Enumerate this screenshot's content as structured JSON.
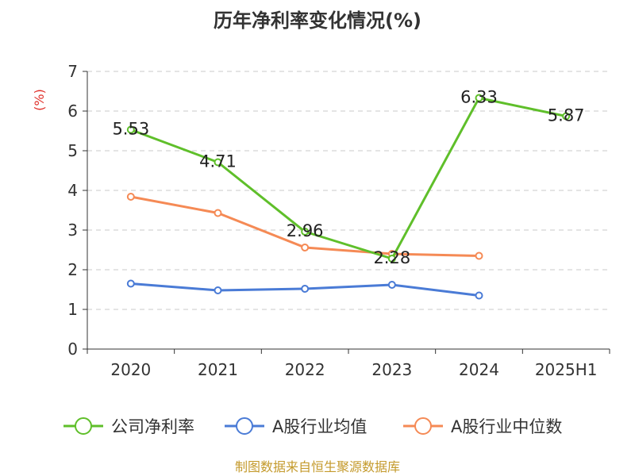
{
  "chart_data": {
    "type": "line",
    "title": "历年净利率变化情况(%)",
    "ylabel": "(%)",
    "xlabel": "",
    "categories": [
      "2020",
      "2021",
      "2022",
      "2023",
      "2024",
      "2025H1"
    ],
    "ylim": [
      0,
      7
    ],
    "yticks": [
      0,
      1,
      2,
      3,
      4,
      5,
      6,
      7
    ],
    "grid": true,
    "legend_position": "bottom",
    "series": [
      {
        "name": "公司净利率",
        "color": "#5fbf2a",
        "values": [
          5.53,
          4.71,
          2.96,
          2.28,
          6.33,
          5.87
        ],
        "show_labels": true
      },
      {
        "name": "A股行业均值",
        "color": "#4a7bd6",
        "values": [
          1.65,
          1.48,
          1.52,
          1.62,
          1.35,
          null
        ],
        "show_labels": false
      },
      {
        "name": "A股行业中位数",
        "color": "#f58a55",
        "values": [
          3.84,
          3.43,
          2.56,
          2.4,
          2.35,
          null
        ],
        "show_labels": false
      }
    ]
  },
  "source": "制图数据来自恒生聚源数据库"
}
